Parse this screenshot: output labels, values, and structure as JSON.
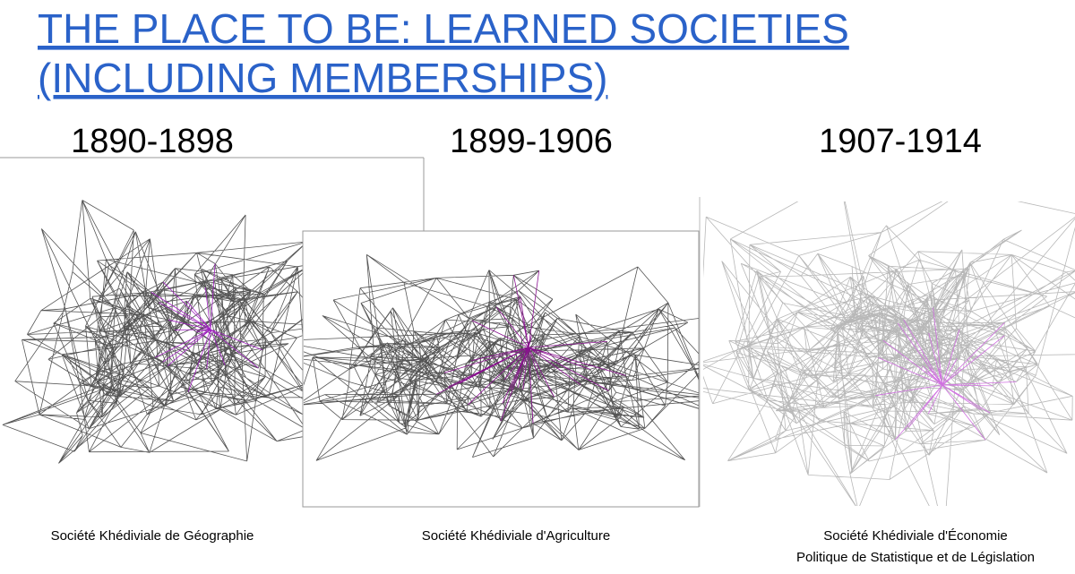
{
  "title": {
    "lines": [
      "THE PLACE TO BE: LEARNED SOCIETIES",
      "(INCLUDING MEMBERSHIPS)"
    ]
  },
  "panels": [
    {
      "period": "1890-1898",
      "caption": [
        "Société Khédiviale de Géographie"
      ]
    },
    {
      "period": "1899-1906",
      "caption": [
        "Société Khédiviale d'Agriculture"
      ]
    },
    {
      "period": "1907-1914",
      "caption": [
        "Société Khédiviale d'Économie",
        "Politique de Statistique et de Législation"
      ]
    }
  ]
}
